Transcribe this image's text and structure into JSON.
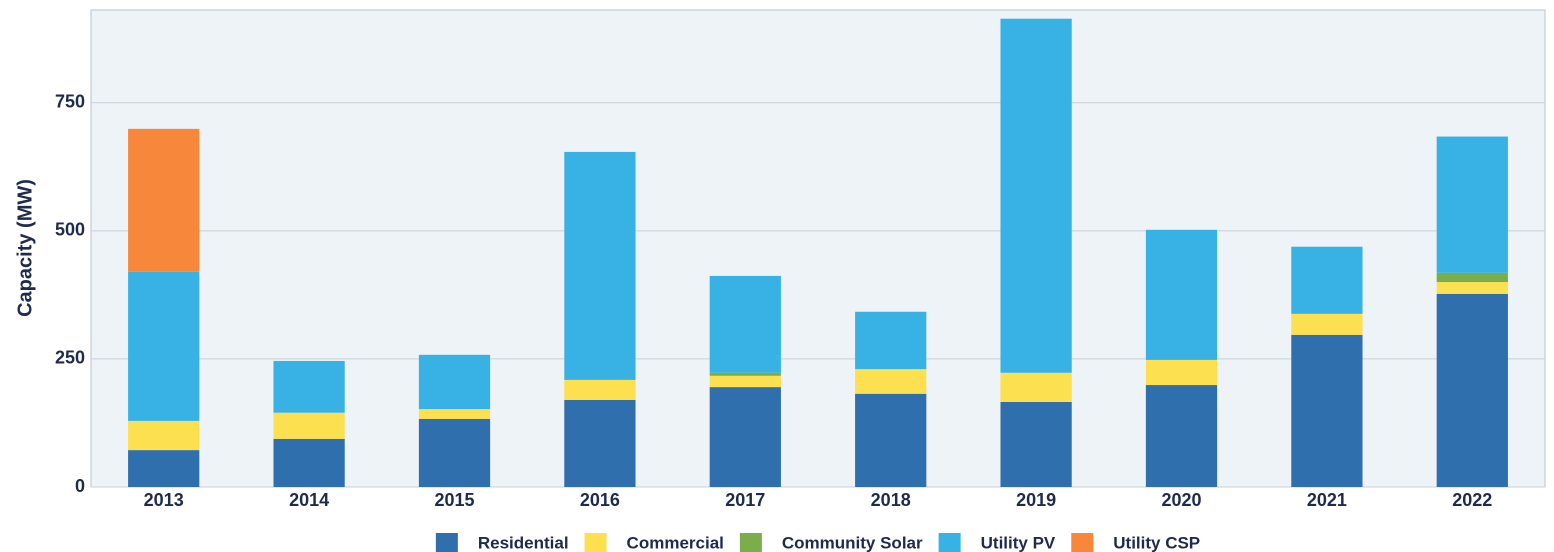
{
  "chart_data": {
    "type": "stacked_bar",
    "y_label": "Capacity (MW)",
    "categories": [
      "2013",
      "2014",
      "2015",
      "2016",
      "2017",
      "2018",
      "2019",
      "2020",
      "2021",
      "2022"
    ],
    "series": [
      {
        "name": "Residential",
        "color": "#2f6fad",
        "values": [
          72,
          94,
          133,
          170,
          195,
          182,
          166,
          199,
          297,
          377
        ]
      },
      {
        "name": "Commercial",
        "color": "#fde04f",
        "values": [
          57,
          51,
          19,
          39,
          22,
          48,
          57,
          49,
          41,
          23
        ]
      },
      {
        "name": "Community Solar",
        "color": "#7aae4a",
        "values": [
          0,
          0,
          0,
          0,
          6,
          0,
          0,
          0,
          0,
          18
        ]
      },
      {
        "name": "Utility PV",
        "color": "#38b2e5",
        "values": [
          291,
          101,
          106,
          445,
          189,
          112,
          691,
          254,
          131,
          266
        ]
      },
      {
        "name": "Utility CSP",
        "color": "#f7873a",
        "values": [
          279,
          0,
          0,
          0,
          0,
          0,
          0,
          0,
          0,
          0
        ]
      }
    ],
    "ylim": [
      0,
      931
    ],
    "yticks": [
      0,
      250,
      500,
      750
    ],
    "grid": true,
    "legend": "bottom"
  }
}
